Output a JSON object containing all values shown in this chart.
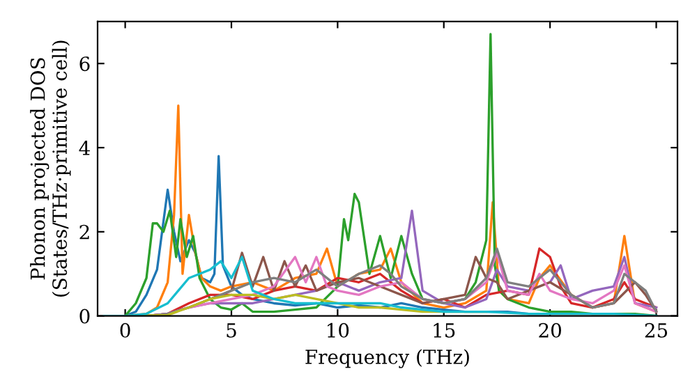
{
  "chart_data": {
    "type": "line",
    "xlabel": "Frequency (THz)",
    "ylabel": "Phonon projected DOS\n(States/THz·primitive cell)",
    "xlim": [
      -1.3,
      26
    ],
    "ylim": [
      0,
      7
    ],
    "xticks": [
      0,
      5,
      10,
      15,
      20,
      25
    ],
    "yticks": [
      0,
      2,
      4,
      6
    ],
    "grid": false,
    "legend": false,
    "series": [
      {
        "color": "#1f77b4",
        "x": [
          -1,
          0,
          0.5,
          1,
          1.5,
          2,
          2.3,
          2.6,
          3,
          3.3,
          3.6,
          4,
          4.2,
          4.4,
          4.6,
          5,
          5.5,
          6,
          7,
          8,
          9,
          10,
          11,
          12,
          13,
          14,
          15,
          16,
          17,
          18,
          19,
          20
        ],
        "values": [
          0,
          0,
          0.1,
          0.5,
          1.1,
          3.0,
          2.0,
          1.3,
          1.8,
          1.5,
          0.9,
          0.8,
          1.0,
          3.8,
          1.2,
          0.7,
          0.5,
          0.4,
          0.3,
          0.25,
          0.3,
          0.2,
          0.25,
          0.2,
          0.3,
          0.2,
          0.15,
          0.1,
          0.1,
          0.1,
          0.05,
          0.05
        ]
      },
      {
        "color": "#ff7f0e",
        "x": [
          -1,
          0,
          1,
          1.5,
          2,
          2.3,
          2.5,
          2.7,
          3,
          3.3,
          3.6,
          4,
          4.5,
          5,
          6,
          7,
          8,
          9,
          9.5,
          10,
          11,
          12,
          12.5,
          13,
          14,
          15,
          16,
          17,
          17.3,
          17.6,
          18,
          19,
          19.5,
          20,
          21,
          22,
          23,
          23.5,
          24,
          25
        ],
        "values": [
          0,
          0,
          0.05,
          0.2,
          0.8,
          2.4,
          5.0,
          1.0,
          2.4,
          1.5,
          0.9,
          0.7,
          0.6,
          0.7,
          0.8,
          0.6,
          0.9,
          1.0,
          1.6,
          0.7,
          1.0,
          1.1,
          1.6,
          0.8,
          0.3,
          0.2,
          0.3,
          0.6,
          2.7,
          0.6,
          0.4,
          0.3,
          0.9,
          1.2,
          0.5,
          0.2,
          0.3,
          1.9,
          0.3,
          0.1
        ]
      },
      {
        "color": "#2ca02c",
        "x": [
          -1,
          0,
          0.5,
          1,
          1.3,
          1.5,
          1.8,
          2.1,
          2.4,
          2.6,
          2.9,
          3.2,
          3.5,
          4,
          4.5,
          5,
          5.5,
          6,
          7,
          8,
          9,
          10,
          10.3,
          10.5,
          10.8,
          11,
          11.5,
          12,
          12.5,
          13,
          13.5,
          14,
          15,
          16,
          16.5,
          17,
          17.2,
          17.4,
          17.6,
          18,
          19,
          20,
          21,
          22,
          23,
          24,
          25
        ],
        "values": [
          0,
          0,
          0.3,
          0.9,
          2.2,
          2.2,
          2.0,
          2.5,
          1.4,
          2.3,
          1.4,
          1.9,
          0.9,
          0.4,
          0.2,
          0.15,
          0.3,
          0.1,
          0.1,
          0.15,
          0.2,
          0.7,
          2.3,
          1.8,
          2.9,
          2.7,
          1.0,
          1.9,
          0.9,
          1.9,
          1.0,
          0.4,
          0.3,
          0.4,
          0.8,
          1.8,
          6.7,
          1.2,
          0.6,
          0.4,
          0.2,
          0.1,
          0.1,
          0.05,
          0.05,
          0.05,
          0
        ]
      },
      {
        "color": "#d62728",
        "x": [
          1,
          2,
          3,
          4,
          5,
          6,
          7,
          8,
          9,
          10,
          11,
          12,
          13,
          14,
          15,
          16,
          17,
          18,
          19,
          19.5,
          20,
          20.5,
          21,
          22,
          23,
          23.5,
          24,
          25
        ],
        "values": [
          0,
          0.05,
          0.3,
          0.5,
          0.5,
          0.4,
          0.6,
          0.7,
          0.6,
          0.9,
          0.8,
          1.0,
          0.6,
          0.3,
          0.4,
          0.2,
          0.5,
          0.6,
          0.5,
          1.6,
          1.4,
          0.7,
          0.3,
          0.2,
          0.4,
          0.8,
          0.4,
          0.2
        ]
      },
      {
        "color": "#9467bd",
        "x": [
          -1,
          0,
          1,
          2,
          3,
          4,
          5,
          6,
          7,
          8,
          9,
          10,
          11,
          12,
          13,
          13.5,
          14,
          15,
          16,
          17,
          17.5,
          18,
          19,
          20,
          20.5,
          21,
          22,
          23,
          23.5,
          24,
          25
        ],
        "values": [
          0,
          0,
          0,
          0.05,
          0.2,
          0.3,
          0.3,
          0.3,
          0.4,
          0.5,
          0.6,
          0.8,
          0.6,
          0.8,
          0.9,
          2.5,
          0.6,
          0.3,
          0.2,
          0.4,
          1.1,
          0.7,
          0.6,
          0.8,
          1.2,
          0.4,
          0.6,
          0.7,
          1.4,
          0.3,
          0.2
        ]
      },
      {
        "color": "#8c564b",
        "x": [
          -1,
          0,
          1,
          2,
          3,
          4,
          5,
          5.5,
          6,
          6.5,
          7,
          7.5,
          8,
          8.5,
          9,
          10,
          11,
          12,
          13,
          14,
          15,
          16,
          16.5,
          17,
          17.5,
          18,
          19,
          20,
          21,
          22,
          23,
          24,
          24.5,
          25
        ],
        "values": [
          0,
          0,
          0,
          0.05,
          0.2,
          0.4,
          0.6,
          1.5,
          0.7,
          1.4,
          0.6,
          1.3,
          0.7,
          1.2,
          0.6,
          0.8,
          0.9,
          0.7,
          0.5,
          0.3,
          0.4,
          0.5,
          1.4,
          0.9,
          0.8,
          0.4,
          0.6,
          0.8,
          0.5,
          0.2,
          0.3,
          0.8,
          0.5,
          0.1
        ]
      },
      {
        "color": "#e377c2",
        "x": [
          -1,
          0,
          1,
          2,
          3,
          4,
          5,
          6,
          7,
          8,
          8.5,
          9,
          9.5,
          10,
          11,
          12,
          13,
          14,
          15,
          16,
          17,
          17.5,
          18,
          19,
          19.5,
          20,
          21,
          22,
          23,
          23.5,
          24,
          25
        ],
        "values": [
          0,
          0,
          0,
          0.05,
          0.2,
          0.3,
          0.4,
          0.5,
          0.7,
          1.4,
          0.8,
          1.4,
          0.7,
          0.6,
          0.5,
          0.7,
          0.8,
          0.4,
          0.3,
          0.4,
          0.8,
          1.5,
          0.6,
          0.5,
          1.0,
          0.6,
          0.4,
          0.3,
          0.6,
          1.2,
          0.3,
          0.1
        ]
      },
      {
        "color": "#7f7f7f",
        "x": [
          -1,
          0,
          1,
          2,
          3,
          4,
          5,
          6,
          7,
          8,
          9,
          10,
          11,
          12,
          12.5,
          13,
          14,
          15,
          16,
          17,
          17.5,
          18,
          19,
          20,
          21,
          22,
          23,
          23.5,
          24,
          24.5,
          25
        ],
        "values": [
          0,
          0,
          0,
          0.05,
          0.2,
          0.4,
          0.6,
          0.8,
          0.9,
          0.8,
          1.1,
          0.7,
          1.0,
          1.2,
          1.0,
          0.7,
          0.4,
          0.3,
          0.4,
          0.9,
          1.6,
          0.8,
          0.7,
          1.1,
          0.5,
          0.2,
          0.3,
          1.0,
          0.8,
          0.6,
          0.1
        ]
      },
      {
        "color": "#bcbd22",
        "x": [
          -1,
          0,
          2,
          3,
          4,
          5,
          6,
          7,
          8,
          9,
          10,
          11,
          12,
          13,
          14,
          15,
          17
        ],
        "values": [
          0,
          0,
          0.02,
          0.2,
          0.4,
          0.5,
          0.5,
          0.4,
          0.5,
          0.4,
          0.3,
          0.2,
          0.2,
          0.15,
          0.1,
          0.1,
          0.1
        ]
      },
      {
        "color": "#17becf",
        "x": [
          -1,
          0,
          1,
          2,
          2.5,
          3,
          3.5,
          4,
          4.5,
          5,
          5.5,
          6,
          7,
          8,
          9,
          10,
          11,
          12,
          13,
          14,
          15,
          17,
          19,
          21,
          23,
          25
        ],
        "values": [
          0,
          0,
          0.05,
          0.3,
          0.6,
          0.9,
          1.0,
          1.1,
          1.3,
          0.9,
          1.4,
          0.6,
          0.4,
          0.3,
          0.3,
          0.3,
          0.3,
          0.3,
          0.2,
          0.15,
          0.1,
          0.1,
          0.05,
          0.05,
          0.05,
          0
        ]
      }
    ]
  }
}
